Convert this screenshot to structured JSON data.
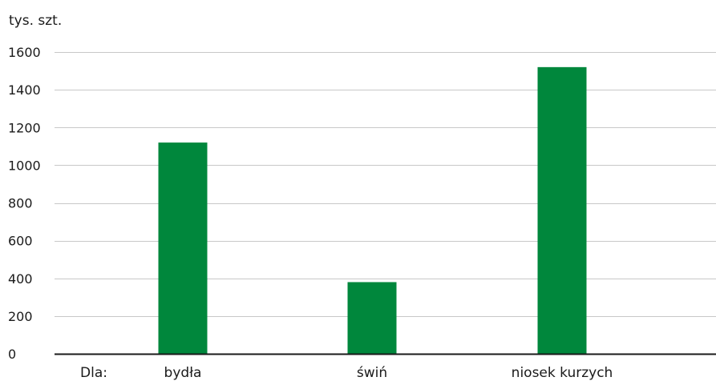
{
  "chart_data": {
    "type": "bar",
    "ylabel": "tys. szt.",
    "category_prefix": "Dla:",
    "categories": [
      "bydła",
      "świń",
      "niosek kurzych"
    ],
    "values": [
      1120,
      380,
      1520
    ],
    "ylim": [
      0,
      1600
    ],
    "yticks": [
      0,
      200,
      400,
      600,
      800,
      1000,
      1200,
      1400,
      1600
    ],
    "grid": true,
    "legend": "none",
    "colors": {
      "bar": "#00873c",
      "grid": "#c8c8c8",
      "axis": "#1a1a1a"
    }
  }
}
